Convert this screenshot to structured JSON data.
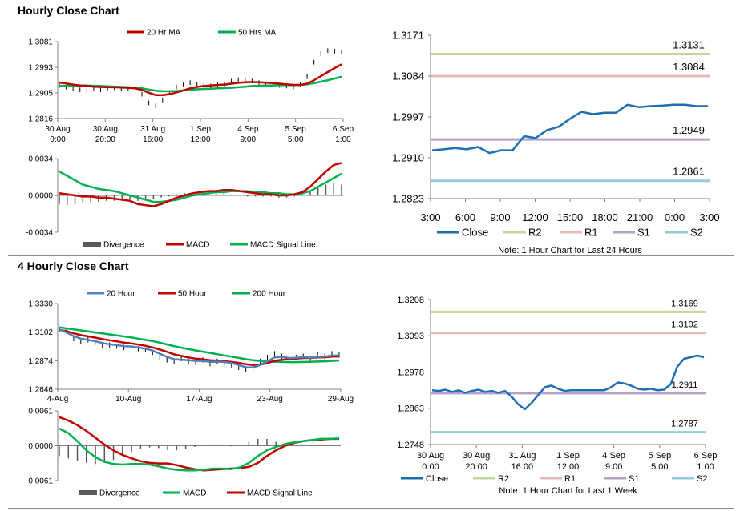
{
  "sections": [
    {
      "title": "Hourly Close Chart"
    },
    {
      "title": "4 Hourly Close Chart"
    }
  ],
  "colors": {
    "ma20": "#c00000",
    "ma50": "#00b050",
    "close": "#1f6eb4",
    "r2": "#c3d69b",
    "r1": "#e6b9b8",
    "s1": "#b3a2c7",
    "s2": "#93cddd",
    "divergence": "#595959",
    "hour20": "#4f81bd",
    "hour50": "#c00000",
    "hour200": "#00b050"
  },
  "chart_data": [
    {
      "id": "hourly-price",
      "type": "line",
      "legend": [
        "20 Hr MA",
        "50 Hrs MA"
      ],
      "yticks": [
        "1.3081",
        "1.2993",
        "1.2905",
        "1.2816"
      ],
      "ylim": [
        1.2816,
        1.3081
      ],
      "xticks": [
        [
          "30 Aug",
          "0:00"
        ],
        [
          "30 Aug",
          "20:00"
        ],
        [
          "31 Aug",
          "16:00"
        ],
        [
          "1 Sep",
          "12:00"
        ],
        [
          "4 Sep",
          "9:00"
        ],
        [
          "5 Sep",
          "5:00"
        ],
        [
          "6 Sep",
          "1:00"
        ]
      ],
      "price": [
        1.293,
        1.2925,
        1.292,
        1.2915,
        1.2912,
        1.2918,
        1.2915,
        1.292,
        1.2922,
        1.2918,
        1.292,
        1.2915,
        1.29,
        1.287,
        1.286,
        1.288,
        1.2905,
        1.2925,
        1.2935,
        1.294,
        1.2935,
        1.293,
        1.2928,
        1.2932,
        1.2935,
        1.2945,
        1.295,
        1.2948,
        1.2945,
        1.294,
        1.2935,
        1.2932,
        1.293,
        1.2928,
        1.2925,
        1.2935,
        1.296,
        1.301,
        1.304,
        1.305,
        1.3048,
        1.3045
      ],
      "ma20": [
        1.294,
        1.2937,
        1.2933,
        1.293,
        1.2928,
        1.2926,
        1.2925,
        1.2924,
        1.2924,
        1.2923,
        1.2922,
        1.292,
        1.2915,
        1.2905,
        1.2897,
        1.2897,
        1.29,
        1.2906,
        1.2913,
        1.292,
        1.2925,
        1.2928,
        1.293,
        1.2932,
        1.2933,
        1.2936,
        1.2939,
        1.2941,
        1.2942,
        1.2941,
        1.294,
        1.2938,
        1.2936,
        1.2934,
        1.2932,
        1.2932,
        1.2936,
        1.2948,
        1.2962,
        1.2976,
        1.299,
        1.3003
      ],
      "ma50": [
        1.2928,
        1.2929,
        1.293,
        1.293,
        1.293,
        1.2929,
        1.2928,
        1.2927,
        1.2926,
        1.2925,
        1.2924,
        1.2922,
        1.292,
        1.2916,
        1.2912,
        1.291,
        1.291,
        1.2911,
        1.2913,
        1.2915,
        1.2917,
        1.2918,
        1.2919,
        1.292,
        1.2921,
        1.2922,
        1.2924,
        1.2926,
        1.2928,
        1.2929,
        1.293,
        1.293,
        1.2931,
        1.2931,
        1.2931,
        1.2932,
        1.2934,
        1.2938,
        1.2943,
        1.2948,
        1.2954,
        1.296
      ]
    },
    {
      "id": "hourly-macd",
      "type": "line",
      "legend": [
        "Divergence",
        "MACD",
        "MACD Signal Line"
      ],
      "yticks": [
        "0.0034",
        "0.0000",
        "-0.0034"
      ],
      "ylim": [
        -0.0034,
        0.0034
      ],
      "macd": [
        0.0002,
        0.0001,
        0.0,
        -0.0001,
        -0.0001,
        -0.0002,
        -0.0002,
        -0.0003,
        -0.0004,
        -0.0005,
        -0.0008,
        -0.0009,
        -0.001,
        -0.0008,
        -0.0005,
        -0.0002,
        0.0,
        0.0002,
        0.0003,
        0.0004,
        0.0004,
        0.0005,
        0.0005,
        0.0004,
        0.0003,
        0.0002,
        0.0001,
        0.0001,
        0.0,
        0.0,
        0.0001,
        0.0003,
        0.0008,
        0.0015,
        0.0022,
        0.0028,
        0.003
      ],
      "signal": [
        0.0022,
        0.0018,
        0.0014,
        0.001,
        0.0008,
        0.0006,
        0.0005,
        0.0004,
        0.0002,
        0.0,
        -0.0002,
        -0.0004,
        -0.0006,
        -0.0006,
        -0.0005,
        -0.0004,
        -0.0002,
        0.0,
        0.0001,
        0.0002,
        0.0003,
        0.0003,
        0.0004,
        0.0004,
        0.0004,
        0.0003,
        0.0003,
        0.0002,
        0.0002,
        0.0001,
        0.0001,
        0.0002,
        0.0004,
        0.0008,
        0.0012,
        0.0016,
        0.002
      ],
      "divergence": [
        -0.0008,
        -0.0009,
        -0.0008,
        -0.0007,
        -0.0006,
        -0.0006,
        -0.0005,
        -0.0005,
        -0.0005,
        -0.0004,
        -0.0005,
        -0.0004,
        -0.0003,
        -0.0002,
        -0.0001,
        0.0001,
        0.0002,
        0.0002,
        0.0002,
        0.0002,
        0.0002,
        0.0002,
        0.0001,
        0.0,
        -0.0001,
        -0.0001,
        -0.0001,
        -0.0001,
        -0.0002,
        -0.0002,
        -0.0001,
        0.0001,
        0.0004,
        0.0007,
        0.001,
        0.0011,
        0.001
      ]
    },
    {
      "id": "hourly-24h",
      "type": "line",
      "yticks": [
        "1.3171",
        "1.3084",
        "1.2997",
        "1.2910",
        "1.2823"
      ],
      "ylim": [
        1.2823,
        1.3171
      ],
      "xticks": [
        "3:00",
        "6:00",
        "9:00",
        "12:00",
        "15:00",
        "18:00",
        "21:00",
        "0:00",
        "3:00"
      ],
      "close": [
        1.2926,
        1.2928,
        1.2931,
        1.2928,
        1.2933,
        1.292,
        1.2926,
        1.2926,
        1.2956,
        1.2952,
        1.2969,
        1.2976,
        1.2993,
        1.3008,
        1.3003,
        1.3006,
        1.3006,
        1.3023,
        1.3018,
        1.302,
        1.3021,
        1.3023,
        1.3023,
        1.302,
        1.302
      ],
      "levels": [
        {
          "name": "R2",
          "value": 1.3131,
          "label": "1.3131"
        },
        {
          "name": "R1",
          "value": 1.3084,
          "label": "1.3084"
        },
        {
          "name": "S1",
          "value": 1.2949,
          "label": "1.2949"
        },
        {
          "name": "S2",
          "value": 1.2861,
          "label": "1.2861"
        }
      ],
      "legend": [
        "Close",
        "R2",
        "R1",
        "S1",
        "S2"
      ],
      "note": "Note: 1 Hour Chart for Last 24 Hours"
    },
    {
      "id": "four-hourly-price",
      "type": "line",
      "legend": [
        "20 Hour",
        "50 Hour",
        "200 Hour"
      ],
      "yticks": [
        "1.3330",
        "1.3102",
        "1.2874",
        "1.2646"
      ],
      "ylim": [
        1.2646,
        1.333
      ],
      "xticks": [
        "4-Aug",
        "10-Aug",
        "17-Aug",
        "23-Aug",
        "29-Aug"
      ],
      "price": [
        1.312,
        1.311,
        1.305,
        1.303,
        1.304,
        1.302,
        1.3,
        1.3,
        1.299,
        1.298,
        1.299,
        1.297,
        1.296,
        1.294,
        1.29,
        1.288,
        1.287,
        1.289,
        1.287,
        1.286,
        1.288,
        1.285,
        1.287,
        1.286,
        1.284,
        1.282,
        1.28,
        1.282,
        1.287,
        1.29,
        1.293,
        1.291,
        1.288,
        1.29,
        1.291,
        1.289,
        1.292,
        1.291,
        1.293,
        1.292
      ],
      "hour20": [
        1.3125,
        1.31,
        1.307,
        1.305,
        1.304,
        1.303,
        1.3015,
        1.3005,
        1.2998,
        1.299,
        1.2988,
        1.298,
        1.297,
        1.2955,
        1.293,
        1.2905,
        1.2885,
        1.2882,
        1.2878,
        1.2872,
        1.2872,
        1.2865,
        1.2866,
        1.2864,
        1.2855,
        1.284,
        1.2822,
        1.282,
        1.284,
        1.287,
        1.29,
        1.2905,
        1.2895,
        1.2897,
        1.2902,
        1.2898,
        1.2905,
        1.2906,
        1.2915,
        1.2915
      ],
      "hour50": [
        1.312,
        1.311,
        1.3092,
        1.3078,
        1.3068,
        1.3058,
        1.3047,
        1.3037,
        1.3028,
        1.3018,
        1.3012,
        1.3003,
        1.2993,
        1.298,
        1.2963,
        1.2945,
        1.2925,
        1.2912,
        1.29,
        1.289,
        1.2885,
        1.2878,
        1.2874,
        1.287,
        1.2864,
        1.2856,
        1.2846,
        1.284,
        1.2842,
        1.2855,
        1.2872,
        1.2882,
        1.2886,
        1.289,
        1.2895,
        1.2896,
        1.29,
        1.2902,
        1.2906,
        1.2908
      ],
      "hour200": [
        1.314,
        1.3132,
        1.3124,
        1.3116,
        1.3108,
        1.31,
        1.3092,
        1.3084,
        1.3076,
        1.3068,
        1.306,
        1.305,
        1.304,
        1.303,
        1.3018,
        1.3004,
        1.299,
        1.2978,
        1.2966,
        1.2956,
        1.2946,
        1.2936,
        1.2926,
        1.2916,
        1.2906,
        1.2896,
        1.2886,
        1.2878,
        1.2872,
        1.2868,
        1.2866,
        1.2864,
        1.2863,
        1.2863,
        1.2864,
        1.2865,
        1.2867,
        1.2869,
        1.2872,
        1.2876
      ]
    },
    {
      "id": "four-hourly-macd",
      "type": "line",
      "legend": [
        "Divergence",
        "MACD",
        "MACD Signal Line"
      ],
      "yticks": [
        "0.0061",
        "0.0000",
        "-0.0061"
      ],
      "ylim": [
        -0.0061,
        0.0061
      ],
      "macd": [
        0.003,
        0.0022,
        0.0008,
        -0.0008,
        -0.002,
        -0.0028,
        -0.0032,
        -0.0033,
        -0.0032,
        -0.0032,
        -0.0033,
        -0.0036,
        -0.004,
        -0.0042,
        -0.0043,
        -0.0043,
        -0.0042,
        -0.004,
        -0.004,
        -0.0041,
        -0.0038,
        -0.003,
        -0.0018,
        -0.0008,
        -0.0002,
        0.0003,
        0.0006,
        0.0008,
        0.001,
        0.0012,
        0.0012,
        0.0013
      ],
      "signal": [
        0.005,
        0.0044,
        0.0036,
        0.0026,
        0.0014,
        0.0002,
        -0.0008,
        -0.0016,
        -0.0022,
        -0.0027,
        -0.003,
        -0.0031,
        -0.0031,
        -0.0034,
        -0.0038,
        -0.0041,
        -0.0043,
        -0.0042,
        -0.0041,
        -0.004,
        -0.0039,
        -0.0037,
        -0.003,
        -0.0018,
        -0.0008,
        0.0,
        0.0005,
        0.0008,
        0.001,
        0.0011,
        0.0012,
        0.0012
      ],
      "divergence": [
        -0.0018,
        -0.0022,
        -0.0026,
        -0.003,
        -0.0032,
        -0.003,
        -0.0025,
        -0.0018,
        -0.0011,
        -0.0006,
        -0.0003,
        -0.0004,
        -0.0008,
        -0.0008,
        -0.0005,
        -0.0002,
        0.0001,
        0.0002,
        0.0001,
        -0.0001,
        0.0001,
        0.0007,
        0.0012,
        0.0012,
        0.0007,
        0.0004,
        0.0001,
        0.0,
        0.0,
        0.0001,
        0.0,
        0.0001
      ]
    },
    {
      "id": "four-hourly-week",
      "type": "line",
      "yticks": [
        "1.3208",
        "1.3093",
        "1.2978",
        "1.2863",
        "1.2748"
      ],
      "ylim": [
        1.2748,
        1.3208
      ],
      "xticks": [
        [
          "30 Aug",
          "0:00"
        ],
        [
          "30 Aug",
          "20:00"
        ],
        [
          "31 Aug",
          "16:00"
        ],
        [
          "1 Sep",
          "12:00"
        ],
        [
          "4 Sep",
          "9:00"
        ],
        [
          "5 Sep",
          "5:00"
        ],
        [
          "6 Sep",
          "1:00"
        ]
      ],
      "close": [
        1.292,
        1.2918,
        1.2922,
        1.2915,
        1.292,
        1.2912,
        1.2918,
        1.2922,
        1.2915,
        1.2918,
        1.2912,
        1.2918,
        1.29,
        1.2875,
        1.286,
        1.288,
        1.2905,
        1.293,
        1.2935,
        1.2925,
        1.2918,
        1.292,
        1.292,
        1.292,
        1.292,
        1.292,
        1.292,
        1.293,
        1.2945,
        1.2942,
        1.2935,
        1.2925,
        1.2922,
        1.2925,
        1.292,
        1.2922,
        1.294,
        1.2995,
        1.302,
        1.3025,
        1.303,
        1.3025
      ],
      "levels": [
        {
          "name": "R2",
          "value": 1.3169,
          "label": "1.3169"
        },
        {
          "name": "R1",
          "value": 1.3102,
          "label": "1.3102"
        },
        {
          "name": "S1",
          "value": 1.2911,
          "label": "1.2911"
        },
        {
          "name": "S2",
          "value": 1.2787,
          "label": "1.2787"
        }
      ],
      "legend": [
        "Close",
        "R2",
        "R1",
        "S1",
        "S2"
      ],
      "note": "Note: 1 Hour Chart for Last 1 Week"
    }
  ]
}
